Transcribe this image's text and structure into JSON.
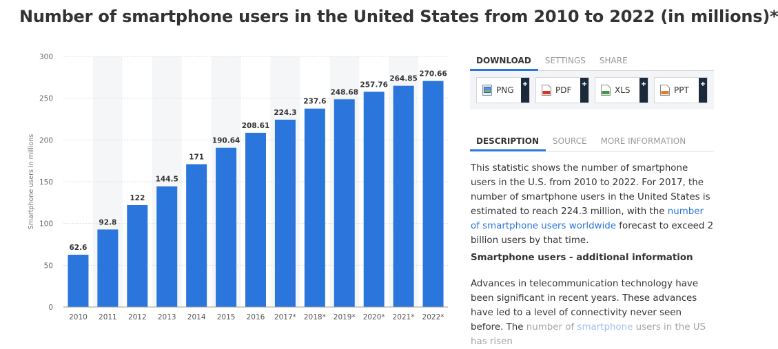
{
  "page": {
    "title": "Number of smartphone users in the United States from 2010 to 2022 (in millions)*"
  },
  "download_tabs": [
    "DOWNLOAD",
    "SETTINGS",
    "SHARE"
  ],
  "download_buttons": [
    {
      "label": "PNG",
      "icon": "png-file-icon",
      "color": "#2b76dc"
    },
    {
      "label": "PDF",
      "icon": "pdf-file-icon",
      "color": "#d9342b"
    },
    {
      "label": "XLS",
      "icon": "xls-file-icon",
      "color": "#3c9a3c"
    },
    {
      "label": "PPT",
      "icon": "ppt-file-icon",
      "color": "#e07b28"
    }
  ],
  "download_plus": "+",
  "info_tabs": [
    "DESCRIPTION",
    "SOURCE",
    "MORE INFORMATION"
  ],
  "description": {
    "part1": "This statistic shows the number of smartphone users in the U.S. from 2010 to 2022. For 2017, the number of smartphone users in the United States is estimated to reach 224.3 million, with the ",
    "link": "number of smartphone users worldwide",
    "part2": " forecast to exceed 2 billion users by that time."
  },
  "additional": {
    "heading": "Smartphone users - additional information",
    "visible_text": "Advances in telecommunication technology have been significant in recent years. These advances have led to a level of connectivity never seen before. The",
    "faded_pre": "number of ",
    "faded_link": "smartphone",
    "faded_post": " users in the US has risen"
  },
  "chart_data": {
    "type": "bar",
    "categories": [
      "2010",
      "2011",
      "2012",
      "2013",
      "2014",
      "2015",
      "2016",
      "2017*",
      "2018*",
      "2019*",
      "2020*",
      "2021*",
      "2022*"
    ],
    "values": [
      62.6,
      92.8,
      122,
      144.5,
      171,
      190.64,
      208.61,
      224.3,
      237.6,
      248.68,
      257.76,
      264.85,
      270.66
    ],
    "value_labels": [
      "62.6",
      "92.8",
      "122",
      "144.5",
      "171",
      "190.64",
      "208.61",
      "224.3",
      "237.6",
      "248.68",
      "257.76",
      "264.85",
      "270.66"
    ],
    "yticks": [
      "0",
      "50",
      "100",
      "150",
      "200",
      "250",
      "300"
    ],
    "ylabel": "Smartphone users in millions",
    "xlabel": "",
    "ylim": [
      0,
      300
    ],
    "bar_color": "#2b76dc",
    "grid": true
  }
}
